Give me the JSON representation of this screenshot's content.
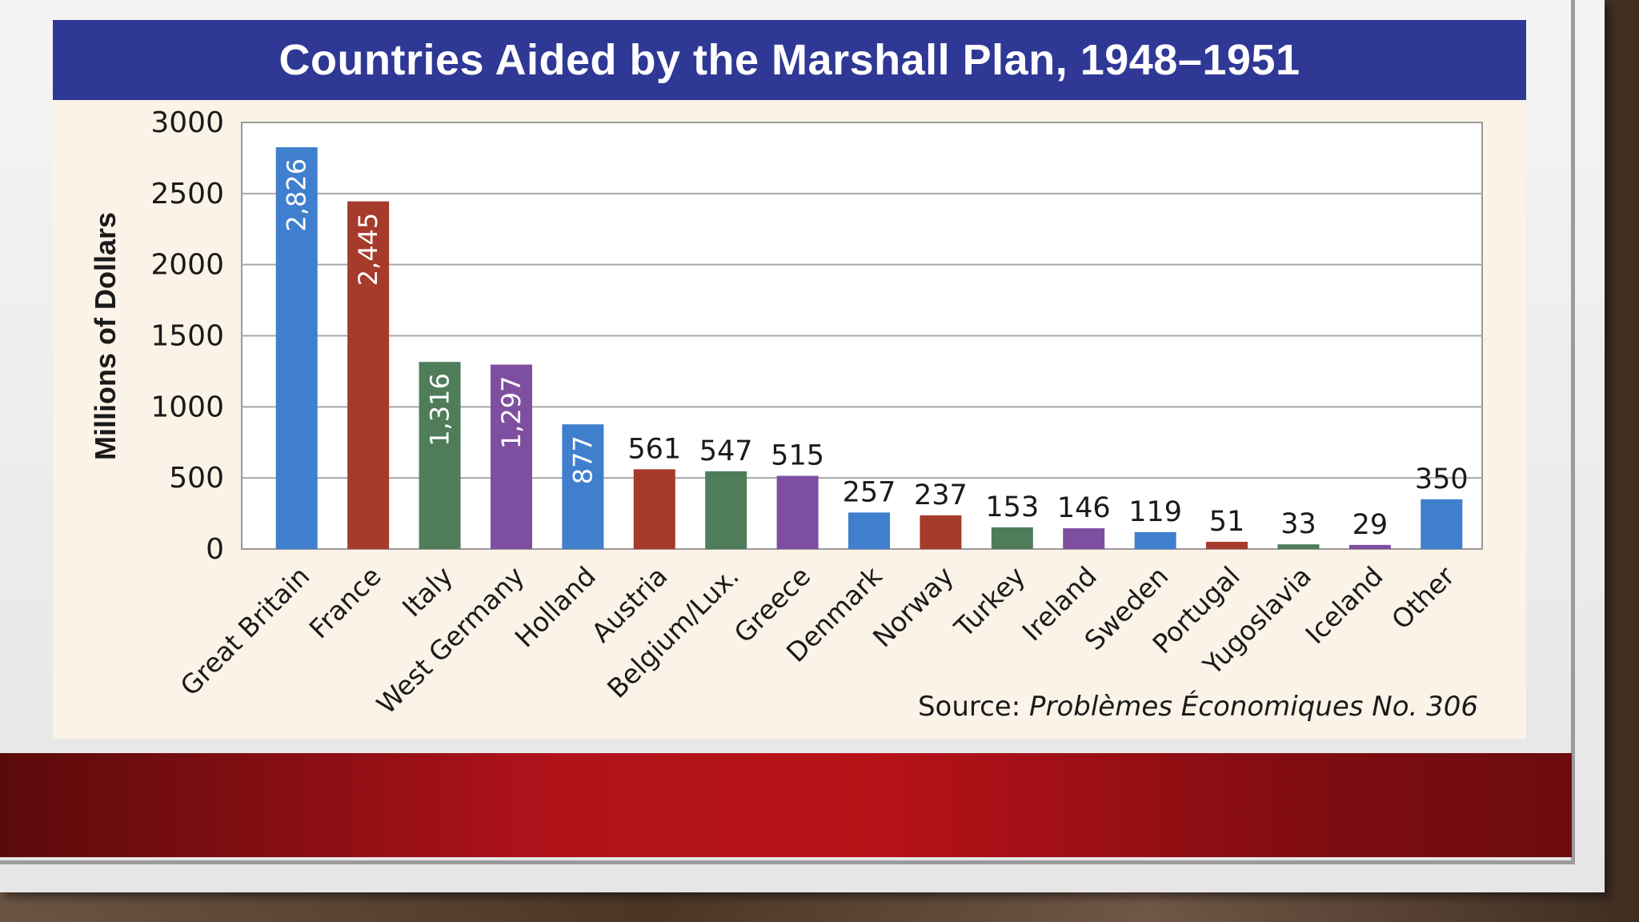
{
  "slide": {
    "background_color": "#eeeeee",
    "band_color": "#b0121a"
  },
  "source": {
    "prefix": "Source:",
    "publication": "Problèmes Économiques No. 306"
  },
  "chart_data": {
    "type": "bar",
    "title": "Countries Aided by the Marshall Plan, 1948–1951",
    "xlabel": "",
    "ylabel": "Millions of Dollars",
    "ylim": [
      0,
      3000
    ],
    "yticks": [
      0,
      500,
      1000,
      1500,
      2000,
      2500,
      3000
    ],
    "grid": true,
    "categories": [
      "Great Britain",
      "France",
      "Italy",
      "West Germany",
      "Holland",
      "Austria",
      "Belgium/Lux.",
      "Greece",
      "Denmark",
      "Norway",
      "Turkey",
      "Ireland",
      "Sweden",
      "Portugal",
      "Yugoslavia",
      "Iceland",
      "Other"
    ],
    "values": [
      2826,
      2445,
      1316,
      1297,
      877,
      561,
      547,
      515,
      257,
      237,
      153,
      146,
      119,
      51,
      33,
      29,
      350
    ],
    "labels": [
      "2,826",
      "2,445",
      "1,316",
      "1,297",
      "877",
      "561",
      "547",
      "515",
      "257",
      "237",
      "153",
      "146",
      "119",
      "51",
      "33",
      "29",
      "350"
    ],
    "label_inside": [
      true,
      true,
      true,
      true,
      true,
      false,
      false,
      false,
      false,
      false,
      false,
      false,
      false,
      false,
      false,
      false,
      false
    ],
    "colors": [
      "#3f7fcd",
      "#a63a2b",
      "#4f7d5a",
      "#7e4fa0",
      "#3f7fcd",
      "#a63a2b",
      "#4f7d5a",
      "#7e4fa0",
      "#3f7fcd",
      "#a63a2b",
      "#4f7d5a",
      "#7e4fa0",
      "#3f7fcd",
      "#a63a2b",
      "#4f7d5a",
      "#7e4fa0",
      "#3f7fcd"
    ]
  }
}
